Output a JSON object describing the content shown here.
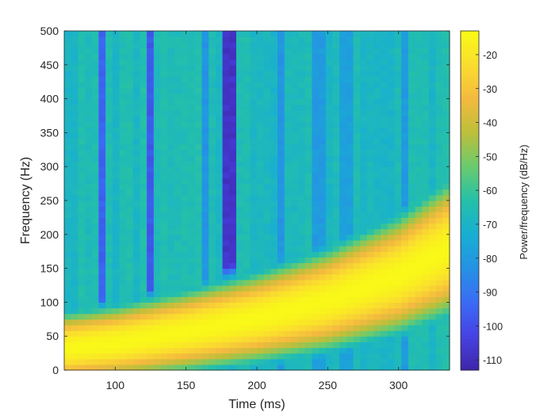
{
  "chart_data": {
    "type": "heatmap",
    "title": "",
    "xlabel": "Time (ms)",
    "ylabel": "Frequency (Hz)",
    "xlim": [
      64,
      336
    ],
    "ylim": [
      0,
      500
    ],
    "xticks": [
      100,
      150,
      200,
      250,
      300
    ],
    "yticks": [
      0,
      50,
      100,
      150,
      200,
      250,
      300,
      350,
      400,
      450,
      500
    ],
    "grid": false,
    "colormap": "parula",
    "colormap_stops": [
      "#3e26a8",
      "#4742e3",
      "#3a6bf5",
      "#2592e4",
      "#17aed2",
      "#25c0a9",
      "#6acb6e",
      "#bcbf3a",
      "#f4ba3f",
      "#fadd2f",
      "#f9fb15"
    ],
    "colorbar": {
      "label": "Power/frequency (dB/Hz)",
      "range": [
        -113,
        -13
      ],
      "ticks": [
        -110,
        -100,
        -90,
        -80,
        -70,
        -60,
        -50,
        -40,
        -30,
        -20
      ],
      "position": "right"
    },
    "time_bins_ms": [
      64,
      336
    ],
    "time_bin_count": 56,
    "frequency_bins_hz": [
      0,
      500
    ],
    "frequency_bin_count": 60,
    "chirp": {
      "description_values": "ridge frequency vs time",
      "time_ms": [
        64,
        100,
        150,
        200,
        250,
        300,
        336
      ],
      "frequency_hz": [
        32,
        40,
        57,
        77,
        103,
        140,
        180
      ],
      "peak_db": -14,
      "background_db": -67
    },
    "dark_columns_ms": [
      {
        "time": 91,
        "db": -95
      },
      {
        "time": 124,
        "db": -98
      },
      {
        "time": 163,
        "db": -82
      },
      {
        "time": 180,
        "db": -108
      },
      {
        "time": 217,
        "db": -82
      },
      {
        "time": 243,
        "db": -80
      },
      {
        "time": 262,
        "db": -78
      },
      {
        "time": 305,
        "db": -80
      }
    ]
  }
}
